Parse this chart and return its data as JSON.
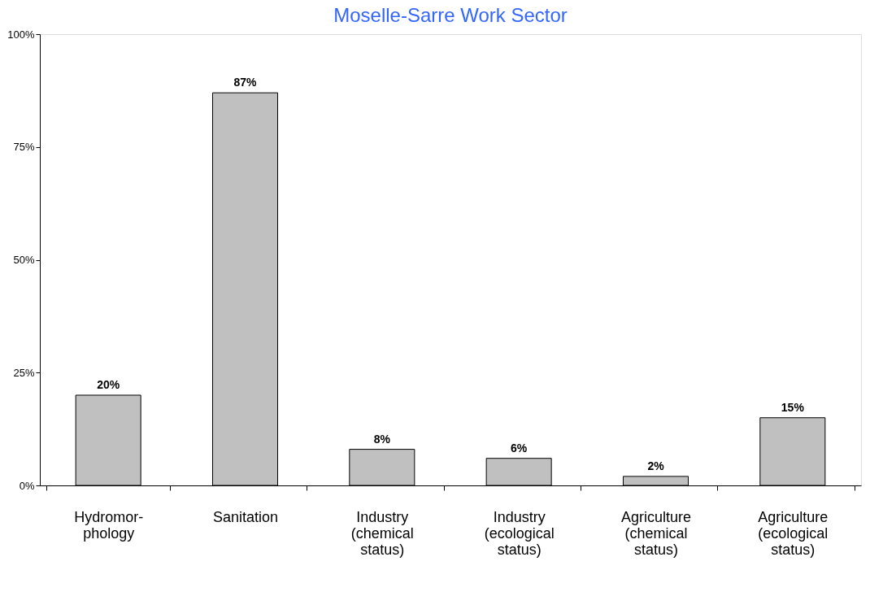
{
  "chart_data": {
    "type": "bar",
    "title": "Moselle-Sarre Work Sector",
    "categories": [
      "Hydromor-\nphology",
      "Sanitation",
      "Industry\n(chemical\nstatus)",
      "Industry\n(ecological\nstatus)",
      "Agriculture\n(chemical\nstatus)",
      "Agriculture\n(ecological\nstatus)"
    ],
    "values": [
      20,
      87,
      8,
      6,
      2,
      15
    ],
    "value_labels": [
      "20%",
      "87%",
      "8%",
      "6%",
      "2%",
      "15%"
    ],
    "color": "#c0c0c0",
    "ylim": [
      0,
      100
    ],
    "yticks": [
      {
        "value": 0,
        "label": "0%"
      },
      {
        "value": 25,
        "label": "25%"
      },
      {
        "value": 50,
        "label": "50%"
      },
      {
        "value": 75,
        "label": "75%"
      },
      {
        "value": 100,
        "label": "100%"
      }
    ],
    "grid": false
  }
}
